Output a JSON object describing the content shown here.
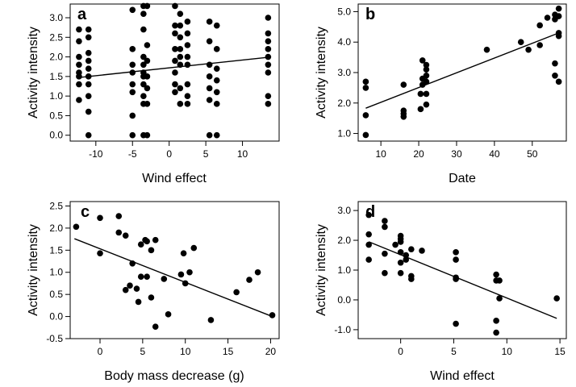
{
  "chart_data": [
    {
      "type": "scatter",
      "panel_label": "a",
      "xlabel": "Wind effect",
      "ylabel": "Activity intensity",
      "xlim": [
        -13.5,
        15
      ],
      "ylim": [
        -0.15,
        3.35
      ],
      "xticks": [
        -10,
        -5,
        0,
        5,
        10
      ],
      "yticks": [
        0.0,
        0.5,
        1.0,
        1.5,
        2.0,
        2.5,
        3.0
      ],
      "ytick_labels": [
        "0.0",
        "0.5",
        "1.0",
        "1.5",
        "2.0",
        "2.5",
        "3.0"
      ],
      "points": [
        [
          -12.3,
          2.7
        ],
        [
          -12.3,
          2.4
        ],
        [
          -12.3,
          2.0
        ],
        [
          -12.3,
          1.8
        ],
        [
          -12.3,
          1.6
        ],
        [
          -12.3,
          1.5
        ],
        [
          -12.3,
          1.3
        ],
        [
          -12.3,
          0.9
        ],
        [
          -11,
          2.7
        ],
        [
          -11,
          2.5
        ],
        [
          -11,
          2.1
        ],
        [
          -11,
          1.9
        ],
        [
          -11,
          1.7
        ],
        [
          -11,
          1.5
        ],
        [
          -11,
          1.3
        ],
        [
          -11,
          1.0
        ],
        [
          -11,
          0.6
        ],
        [
          -11,
          0.0
        ],
        [
          -5,
          3.2
        ],
        [
          -5,
          2.2
        ],
        [
          -5,
          1.8
        ],
        [
          -5,
          1.6
        ],
        [
          -5,
          1.3
        ],
        [
          -5,
          1.1
        ],
        [
          -5,
          0.5
        ],
        [
          -5,
          0.0
        ],
        [
          -3.5,
          3.3
        ],
        [
          -3.5,
          3.1
        ],
        [
          -3.5,
          2.7
        ],
        [
          -3.5,
          2.0
        ],
        [
          -3.5,
          1.8
        ],
        [
          -3.5,
          1.6
        ],
        [
          -3.5,
          1.5
        ],
        [
          -3.5,
          1.3
        ],
        [
          -3.5,
          1.0
        ],
        [
          -3.5,
          0.8
        ],
        [
          -3.5,
          0.0
        ],
        [
          -3,
          3.3
        ],
        [
          -3,
          2.3
        ],
        [
          -3,
          1.9
        ],
        [
          -3,
          1.5
        ],
        [
          -3,
          1.2
        ],
        [
          -3,
          0.8
        ],
        [
          -3,
          0.0
        ],
        [
          0.8,
          3.3
        ],
        [
          0.8,
          2.8
        ],
        [
          0.8,
          2.6
        ],
        [
          0.8,
          2.2
        ],
        [
          0.8,
          1.9
        ],
        [
          0.8,
          1.6
        ],
        [
          0.8,
          1.3
        ],
        [
          0.8,
          1.1
        ],
        [
          1.5,
          3.1
        ],
        [
          1.5,
          2.8
        ],
        [
          1.5,
          2.5
        ],
        [
          1.5,
          2.2
        ],
        [
          1.5,
          2.0
        ],
        [
          1.5,
          1.8
        ],
        [
          1.5,
          1.2
        ],
        [
          1.5,
          0.8
        ],
        [
          2.5,
          2.9
        ],
        [
          2.5,
          2.6
        ],
        [
          2.5,
          2.3
        ],
        [
          2.5,
          2.0
        ],
        [
          2.5,
          1.8
        ],
        [
          2.5,
          1.3
        ],
        [
          2.5,
          1.0
        ],
        [
          2.5,
          0.8
        ],
        [
          5.5,
          2.9
        ],
        [
          5.5,
          2.4
        ],
        [
          5.5,
          1.8
        ],
        [
          5.5,
          1.5
        ],
        [
          5.5,
          1.2
        ],
        [
          5.5,
          0.9
        ],
        [
          5.5,
          0.0
        ],
        [
          6.5,
          2.8
        ],
        [
          6.5,
          2.2
        ],
        [
          6.5,
          1.7
        ],
        [
          6.5,
          1.4
        ],
        [
          6.5,
          1.1
        ],
        [
          6.5,
          0.8
        ],
        [
          6.5,
          0.0
        ],
        [
          13.5,
          3.0
        ],
        [
          13.5,
          2.6
        ],
        [
          13.5,
          2.4
        ],
        [
          13.5,
          2.2
        ],
        [
          13.5,
          2.0
        ],
        [
          13.5,
          1.8
        ],
        [
          13.5,
          1.6
        ],
        [
          13.5,
          1.0
        ],
        [
          13.5,
          0.8
        ]
      ],
      "fit_line": [
        [
          -12.5,
          1.47
        ],
        [
          13.5,
          1.99
        ]
      ]
    },
    {
      "type": "scatter",
      "panel_label": "b",
      "xlabel": "Date",
      "ylabel": "Activity intensity",
      "xlim": [
        4,
        59
      ],
      "ylim": [
        0.75,
        5.25
      ],
      "xticks": [
        10,
        20,
        30,
        40,
        50
      ],
      "yticks": [
        1.0,
        2.0,
        3.0,
        4.0,
        5.0
      ],
      "ytick_labels": [
        "1.0",
        "2.0",
        "3.0",
        "4.0",
        "5.0"
      ],
      "points": [
        [
          6,
          2.7
        ],
        [
          6,
          2.5
        ],
        [
          6,
          1.6
        ],
        [
          6,
          0.95
        ],
        [
          16,
          2.6
        ],
        [
          16,
          1.75
        ],
        [
          16,
          1.65
        ],
        [
          16,
          1.55
        ],
        [
          20.5,
          2.3
        ],
        [
          20.5,
          1.8
        ],
        [
          21,
          3.4
        ],
        [
          21,
          2.8
        ],
        [
          21,
          2.6
        ],
        [
          22,
          3.25
        ],
        [
          22,
          3.1
        ],
        [
          22,
          2.9
        ],
        [
          22,
          2.7
        ],
        [
          22,
          2.3
        ],
        [
          22,
          1.95
        ],
        [
          38,
          3.75
        ],
        [
          47,
          4.0
        ],
        [
          49,
          3.75
        ],
        [
          52,
          4.55
        ],
        [
          52,
          3.9
        ],
        [
          54,
          4.8
        ],
        [
          56,
          4.9
        ],
        [
          56,
          4.75
        ],
        [
          56,
          3.3
        ],
        [
          56,
          2.9
        ],
        [
          57,
          5.1
        ],
        [
          57,
          4.85
        ],
        [
          57,
          4.3
        ],
        [
          57,
          4.2
        ],
        [
          57,
          2.7
        ]
      ],
      "fit_line": [
        [
          6,
          1.83
        ],
        [
          57,
          4.3
        ]
      ]
    },
    {
      "type": "scatter",
      "panel_label": "c",
      "xlabel": "Body mass decrease (g)",
      "ylabel": "Activity intensity",
      "xlim": [
        -3.5,
        21
      ],
      "ylim": [
        -0.5,
        2.6
      ],
      "xticks": [
        0,
        5,
        10,
        15,
        20
      ],
      "yticks": [
        -0.5,
        0.0,
        0.5,
        1.0,
        1.5,
        2.0,
        2.5
      ],
      "ytick_labels": [
        "-0.5",
        "0.0",
        "0.5",
        "1.0",
        "1.5",
        "2.0",
        "2.5"
      ],
      "points": [
        [
          -2.8,
          2.03
        ],
        [
          0,
          2.23
        ],
        [
          0,
          1.43
        ],
        [
          2.2,
          2.27
        ],
        [
          2.2,
          1.9
        ],
        [
          3,
          1.83
        ],
        [
          3,
          0.6
        ],
        [
          3.5,
          0.7
        ],
        [
          3.8,
          1.2
        ],
        [
          4.3,
          0.63
        ],
        [
          4.5,
          0.33
        ],
        [
          4.8,
          1.63
        ],
        [
          4.8,
          0.9
        ],
        [
          5.3,
          1.73
        ],
        [
          5.5,
          1.7
        ],
        [
          5.5,
          0.9
        ],
        [
          6,
          1.5
        ],
        [
          6,
          0.43
        ],
        [
          6.5,
          1.73
        ],
        [
          6.5,
          -0.23
        ],
        [
          7.5,
          0.85
        ],
        [
          8,
          0.05
        ],
        [
          9.5,
          0.95
        ],
        [
          9.8,
          1.43
        ],
        [
          10,
          0.75
        ],
        [
          10.5,
          1.0
        ],
        [
          11,
          1.55
        ],
        [
          13,
          -0.08
        ],
        [
          16,
          0.55
        ],
        [
          17.5,
          0.83
        ],
        [
          18.5,
          1.0
        ],
        [
          20.2,
          0.03
        ]
      ],
      "fit_line": [
        [
          -3,
          1.76
        ],
        [
          20.2,
          0.0
        ]
      ]
    },
    {
      "type": "scatter",
      "panel_label": "d",
      "xlabel": "Wind effect",
      "ylabel": "Activity intensity",
      "xlim": [
        -4,
        15.6
      ],
      "ylim": [
        -1.3,
        3.3
      ],
      "xticks": [
        0,
        5,
        10,
        15
      ],
      "yticks": [
        -1.0,
        0.0,
        1.0,
        2.0,
        3.0
      ],
      "ytick_labels": [
        "-1.0",
        "0.0",
        "1.0",
        "2.0",
        "3.0"
      ],
      "points": [
        [
          -3,
          2.85
        ],
        [
          -3,
          2.2
        ],
        [
          -3,
          1.85
        ],
        [
          -3,
          1.35
        ],
        [
          -1.5,
          2.65
        ],
        [
          -1.5,
          2.45
        ],
        [
          -1.5,
          1.55
        ],
        [
          -1.5,
          0.9
        ],
        [
          -0.5,
          1.85
        ],
        [
          0,
          2.15
        ],
        [
          0,
          2.05
        ],
        [
          0,
          1.95
        ],
        [
          0,
          1.6
        ],
        [
          0,
          1.25
        ],
        [
          0,
          0.9
        ],
        [
          0.5,
          1.5
        ],
        [
          0.5,
          1.35
        ],
        [
          1,
          1.7
        ],
        [
          1,
          0.8
        ],
        [
          1,
          0.7
        ],
        [
          2,
          1.65
        ],
        [
          5.2,
          1.6
        ],
        [
          5.2,
          1.35
        ],
        [
          5.2,
          0.75
        ],
        [
          5.2,
          0.7
        ],
        [
          5.2,
          -0.8
        ],
        [
          9,
          0.85
        ],
        [
          9,
          0.65
        ],
        [
          9,
          -0.7
        ],
        [
          9,
          -1.1
        ],
        [
          9.3,
          0.65
        ],
        [
          9.3,
          0.05
        ],
        [
          14.7,
          0.05
        ]
      ],
      "fit_line": [
        [
          -3,
          1.95
        ],
        [
          14.7,
          -0.62
        ]
      ]
    }
  ]
}
